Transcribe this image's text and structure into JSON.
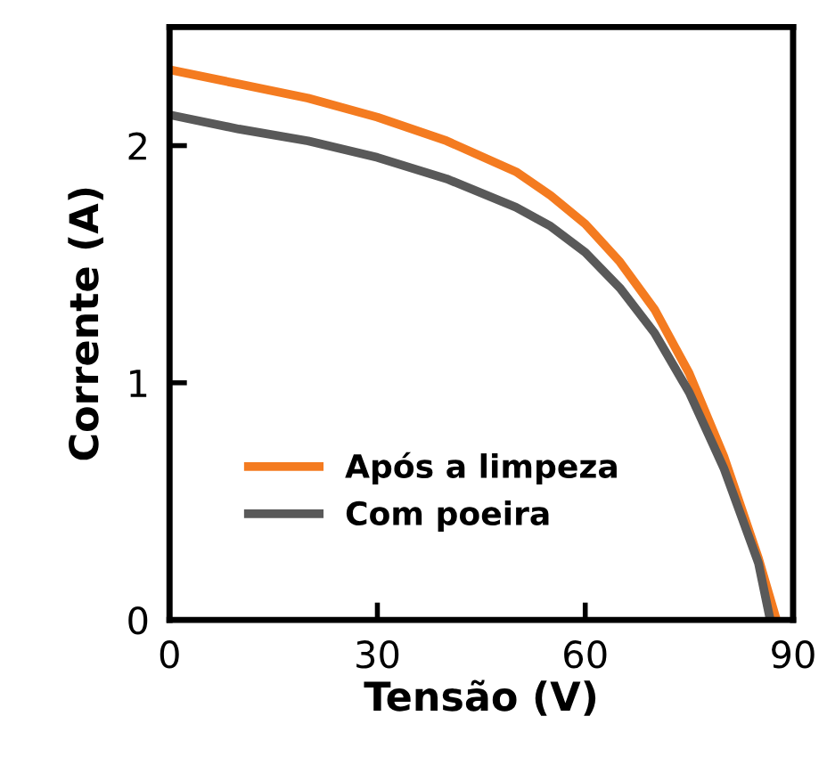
{
  "chart_data": {
    "type": "line",
    "xlabel": "Tensão (V)",
    "ylabel": "Corrente (A)",
    "xlim": [
      0,
      90
    ],
    "xticks": [
      0,
      30,
      60,
      90
    ],
    "ylim": [
      0,
      2.5
    ],
    "yticks": [
      0,
      1,
      2
    ],
    "grid": false,
    "legend": "bottom left",
    "marker": "none",
    "line_style": "solid",
    "x": [
      0,
      10,
      20,
      30,
      40,
      50,
      55,
      60,
      65,
      70,
      75,
      80,
      85,
      87.6
    ],
    "series": [
      {
        "name": "Após a limpeza",
        "color": "#f47b20",
        "values": [
          2.32,
          2.26,
          2.2,
          2.12,
          2.02,
          1.89,
          1.79,
          1.67,
          1.51,
          1.31,
          1.04,
          0.69,
          0.26,
          0
        ]
      },
      {
        "name": "Com poeira",
        "color": "#595959",
        "x": [
          0,
          10,
          20,
          30,
          40,
          50,
          55,
          60,
          65,
          70,
          75,
          80,
          85,
          86.7
        ],
        "values": [
          2.13,
          2.07,
          2.02,
          1.95,
          1.86,
          1.74,
          1.66,
          1.55,
          1.4,
          1.21,
          0.96,
          0.64,
          0.24,
          0
        ]
      }
    ]
  }
}
